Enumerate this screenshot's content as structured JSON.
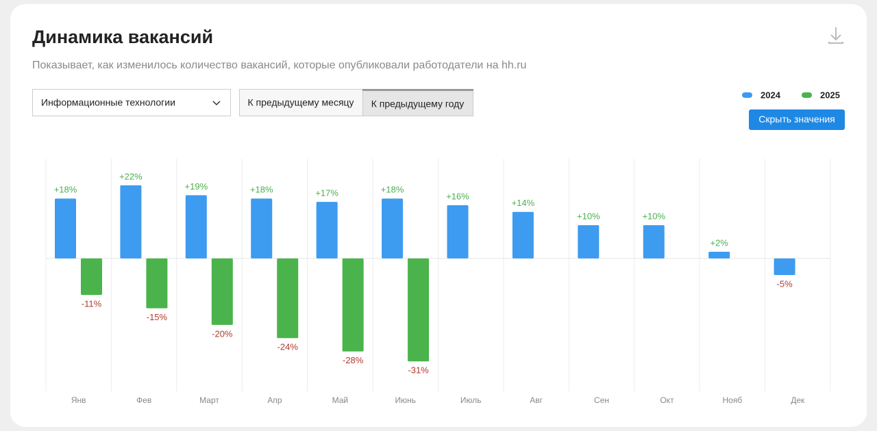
{
  "header": {
    "title": "Динамика вакансий",
    "subtitle": "Показывает, как изменилось количество вакансий, которые опубликовали работодатели на hh.ru"
  },
  "controls": {
    "industry": "Информационные технологии",
    "tabs": [
      "К предыдущему месяцу",
      "К предыдущему году"
    ],
    "selected_tab": 1,
    "hide_button": "Скрыть значения"
  },
  "chart_data": {
    "type": "bar",
    "categories": [
      "Янв",
      "Фев",
      "Март",
      "Апр",
      "Май",
      "Июнь",
      "Июль",
      "Авг",
      "Сен",
      "Окт",
      "Нояб",
      "Дек"
    ],
    "series": [
      {
        "name": "2024",
        "color": "#3d9bf0",
        "values": [
          18,
          22,
          19,
          18,
          17,
          18,
          16,
          14,
          10,
          10,
          2,
          -5
        ],
        "value_labels": [
          "+18%",
          "+22%",
          "+19%",
          "+18%",
          "+17%",
          "+18%",
          "+16%",
          "+14%",
          "+10%",
          "+10%",
          "+2%",
          "-5%"
        ]
      },
      {
        "name": "2025",
        "color": "#4bb34b",
        "values": [
          -11,
          -15,
          -20,
          -24,
          -28,
          -31,
          null,
          null,
          null,
          null,
          null,
          null
        ],
        "value_labels": [
          "-11%",
          "-15%",
          "-20%",
          "-24%",
          "-28%",
          "-31%",
          null,
          null,
          null,
          null,
          null,
          null
        ]
      }
    ],
    "ylim": [
      -40,
      30
    ],
    "grid": true,
    "legend": "top-right"
  }
}
